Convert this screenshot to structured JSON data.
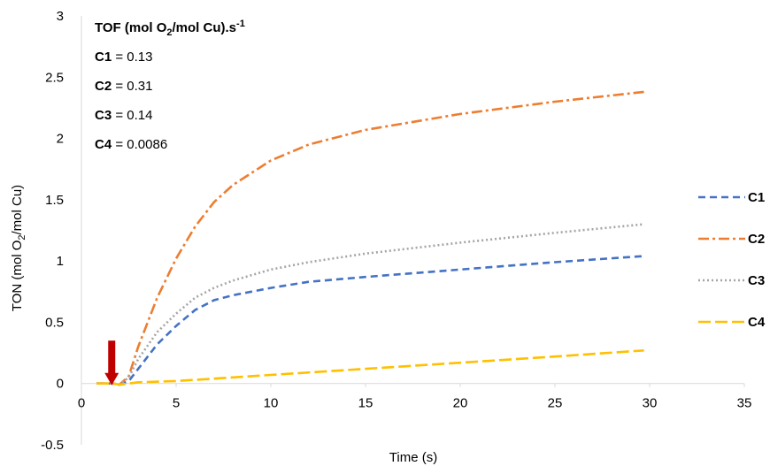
{
  "chart_data": {
    "type": "line",
    "xlabel": "Time (s)",
    "ylabel": "TON (mol O",
    "ylabel_sub": "2",
    "ylabel_tail": "/mol Cu)",
    "xlim": [
      0,
      35
    ],
    "ylim": [
      -0.5,
      3
    ],
    "x_ticks": [
      "0",
      "5",
      "10",
      "15",
      "20",
      "25",
      "30",
      "35"
    ],
    "y_ticks": [
      "-0.5",
      "0",
      "0.5",
      "1",
      "1.5",
      "2",
      "2.5",
      "3"
    ],
    "grid": false,
    "legend_position": "right",
    "annotation": {
      "title_pre": "TOF (mol O",
      "title_sub": "2",
      "title_mid": "/mol Cu).s",
      "title_sup": "-1",
      "entries": [
        {
          "name": "C1",
          "value": "0.13"
        },
        {
          "name": "C2",
          "value": "0.31"
        },
        {
          "name": "C3",
          "value": "0.14"
        },
        {
          "name": "C4",
          "value": "0.0086"
        }
      ]
    },
    "arrow": {
      "x": 1.6,
      "y_top": 0.35,
      "y_tip": 0.0,
      "color": "#c00000"
    },
    "series": [
      {
        "name": "C1",
        "color": "#4472c4",
        "dash": "8,5",
        "points": [
          [
            0.8,
            0
          ],
          [
            1.7,
            0
          ],
          [
            2,
            -0.01
          ],
          [
            2.5,
            0.02
          ],
          [
            3,
            0.12
          ],
          [
            4,
            0.32
          ],
          [
            5,
            0.47
          ],
          [
            6,
            0.6
          ],
          [
            7,
            0.68
          ],
          [
            8,
            0.72
          ],
          [
            10,
            0.78
          ],
          [
            12,
            0.83
          ],
          [
            15,
            0.87
          ],
          [
            20,
            0.93
          ],
          [
            25,
            0.99
          ],
          [
            29.7,
            1.04
          ]
        ]
      },
      {
        "name": "C2",
        "color": "#ed7d31",
        "dash": "12,4,3,4",
        "points": [
          [
            0.8,
            0
          ],
          [
            1.7,
            0
          ],
          [
            2,
            -0.01
          ],
          [
            2.5,
            0.06
          ],
          [
            3,
            0.3
          ],
          [
            4,
            0.7
          ],
          [
            5,
            1.02
          ],
          [
            6,
            1.28
          ],
          [
            7,
            1.48
          ],
          [
            8,
            1.62
          ],
          [
            10,
            1.82
          ],
          [
            12,
            1.95
          ],
          [
            15,
            2.07
          ],
          [
            20,
            2.2
          ],
          [
            25,
            2.3
          ],
          [
            29.7,
            2.38
          ]
        ]
      },
      {
        "name": "C3",
        "color": "#a5a5a5",
        "dash": "2,3",
        "points": [
          [
            0.8,
            0
          ],
          [
            1.7,
            0
          ],
          [
            2,
            -0.01
          ],
          [
            2.5,
            0.05
          ],
          [
            3,
            0.2
          ],
          [
            4,
            0.42
          ],
          [
            5,
            0.57
          ],
          [
            6,
            0.7
          ],
          [
            7,
            0.78
          ],
          [
            8,
            0.84
          ],
          [
            10,
            0.93
          ],
          [
            12,
            0.99
          ],
          [
            15,
            1.06
          ],
          [
            20,
            1.15
          ],
          [
            25,
            1.23
          ],
          [
            29.7,
            1.3
          ]
        ]
      },
      {
        "name": "C4",
        "color": "#ffc000",
        "dash": "14,5",
        "points": [
          [
            0.8,
            0
          ],
          [
            1.7,
            0
          ],
          [
            2,
            -0.01
          ],
          [
            3,
            0.01
          ],
          [
            5,
            0.02
          ],
          [
            7,
            0.04
          ],
          [
            10,
            0.07
          ],
          [
            15,
            0.12
          ],
          [
            20,
            0.17
          ],
          [
            25,
            0.22
          ],
          [
            29.7,
            0.27
          ]
        ]
      }
    ]
  }
}
